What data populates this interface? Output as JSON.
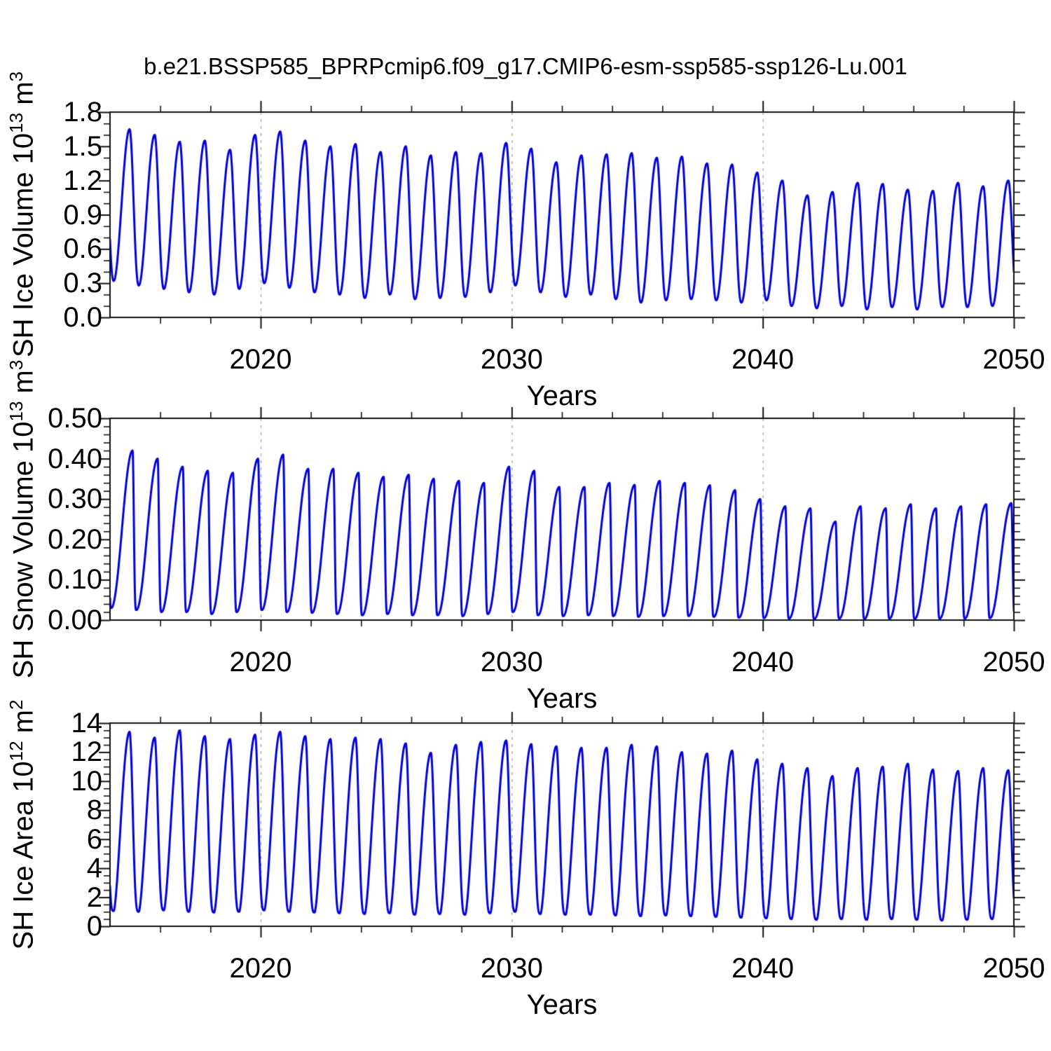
{
  "figure": {
    "title": "b.e21.BSSP585_BPRPcmip6.f09_g17.CMIP6-esm-ssp585-ssp126-Lu.001",
    "background_color": "#ffffff",
    "axis_color": "#111111",
    "gridline_color": "#aaaaaa",
    "line_color": "#0000dd"
  },
  "chart_data": [
    {
      "id": "sh-ice-volume",
      "type": "line",
      "ylabel": {
        "pre": "SH Ice Volume 10",
        "sup1": "13",
        "mid": " m",
        "sup2": "3"
      },
      "xlabel": "Years",
      "x_range": [
        2014,
        2050
      ],
      "y_range": [
        0,
        1.8
      ],
      "x_major_ticks": [
        2020,
        2030,
        2040,
        2050
      ],
      "x_tick_labels": [
        "2020",
        "2030",
        "2040",
        "2050"
      ],
      "x_minor_step": 2,
      "y_major_step": 0.3,
      "y_minor_step": 0.1,
      "y_tick_labels": [
        "0.0",
        "0.3",
        "0.6",
        "0.9",
        "1.2",
        "1.5",
        "1.8"
      ],
      "gridline_years": [
        2020,
        2030,
        2040
      ],
      "grid": "vertical-dashed-at-decades",
      "legend": "none",
      "series": {
        "name": "SH Ice Volume",
        "units": "10^13 m^3",
        "color": "#0000dd",
        "cadence": "monthly seasonal cycle",
        "year_start": 2014,
        "year_end": 2049,
        "trough_phase": 0.15,
        "peak_phase": 0.78,
        "rise_exp": 0.95,
        "fall_exp": 1.25,
        "annual_peaks": [
          1.65,
          1.6,
          1.54,
          1.55,
          1.47,
          1.6,
          1.63,
          1.55,
          1.5,
          1.52,
          1.45,
          1.5,
          1.42,
          1.45,
          1.44,
          1.53,
          1.48,
          1.36,
          1.42,
          1.43,
          1.44,
          1.4,
          1.41,
          1.35,
          1.34,
          1.27,
          1.2,
          1.07,
          1.1,
          1.18,
          1.17,
          1.12,
          1.11,
          1.18,
          1.15,
          1.2
        ],
        "annual_troughs": [
          0.32,
          0.28,
          0.25,
          0.22,
          0.2,
          0.25,
          0.3,
          0.26,
          0.22,
          0.2,
          0.17,
          0.2,
          0.16,
          0.17,
          0.18,
          0.22,
          0.28,
          0.22,
          0.18,
          0.2,
          0.16,
          0.13,
          0.15,
          0.16,
          0.15,
          0.13,
          0.15,
          0.1,
          0.08,
          0.1,
          0.07,
          0.09,
          0.07,
          0.09,
          0.09,
          0.1
        ]
      }
    },
    {
      "id": "sh-snow-volume",
      "type": "line",
      "ylabel": {
        "pre": "SH Snow Volume 10",
        "sup1": "13",
        "mid": " m",
        "sup2": "3"
      },
      "xlabel": "Years",
      "x_range": [
        2014,
        2050
      ],
      "y_range": [
        0,
        0.5
      ],
      "x_major_ticks": [
        2020,
        2030,
        2040,
        2050
      ],
      "x_tick_labels": [
        "2020",
        "2030",
        "2040",
        "2050"
      ],
      "x_minor_step": 2,
      "y_major_step": 0.1,
      "y_minor_step": 0.02,
      "y_tick_labels": [
        "0.00",
        "0.10",
        "0.20",
        "0.30",
        "0.40",
        "0.50"
      ],
      "gridline_years": [
        2020,
        2030,
        2040
      ],
      "grid": "vertical-dashed-at-decades",
      "legend": "none",
      "series": {
        "name": "SH Snow Volume",
        "units": "10^13 m^3",
        "color": "#0000dd",
        "cadence": "monthly seasonal cycle",
        "year_start": 2014,
        "year_end": 2049,
        "trough_phase": 0.05,
        "peak_phase": 0.9,
        "rise_exp": 1.0,
        "fall_exp": 2.0,
        "annual_peaks": [
          0.42,
          0.4,
          0.38,
          0.37,
          0.365,
          0.4,
          0.41,
          0.375,
          0.375,
          0.365,
          0.355,
          0.36,
          0.35,
          0.345,
          0.34,
          0.38,
          0.37,
          0.33,
          0.33,
          0.34,
          0.335,
          0.345,
          0.34,
          0.334,
          0.322,
          0.3,
          0.282,
          0.277,
          0.244,
          0.282,
          0.277,
          0.287,
          0.277,
          0.282,
          0.287,
          0.29
        ],
        "annual_troughs": [
          0.03,
          0.025,
          0.02,
          0.02,
          0.015,
          0.02,
          0.025,
          0.02,
          0.018,
          0.015,
          0.012,
          0.015,
          0.012,
          0.012,
          0.01,
          0.015,
          0.02,
          0.012,
          0.01,
          0.012,
          0.01,
          0.008,
          0.01,
          0.01,
          0.008,
          0.006,
          0.005,
          0.004,
          0.003,
          0.004,
          0.003,
          0.004,
          0.003,
          0.004,
          0.004,
          0.005
        ]
      }
    },
    {
      "id": "sh-ice-area",
      "type": "line",
      "ylabel": {
        "pre": "SH Ice Area 10",
        "sup1": "12",
        "mid": " m",
        "sup2": "2"
      },
      "xlabel": "Years",
      "x_range": [
        2014,
        2050
      ],
      "y_range": [
        0,
        14
      ],
      "x_major_ticks": [
        2020,
        2030,
        2040,
        2050
      ],
      "x_tick_labels": [
        "2020",
        "2030",
        "2040",
        "2050"
      ],
      "x_minor_step": 2,
      "y_major_step": 2,
      "y_minor_step": 0.5,
      "y_tick_labels": [
        "0",
        "2",
        "4",
        "6",
        "8",
        "10",
        "12",
        "14"
      ],
      "gridline_years": [
        2020,
        2030,
        2040
      ],
      "grid": "vertical-dashed-at-decades",
      "legend": "none",
      "series": {
        "name": "SH Ice Area",
        "units": "10^12 m^2",
        "color": "#0000dd",
        "cadence": "monthly seasonal cycle",
        "year_start": 2014,
        "year_end": 2049,
        "trough_phase": 0.15,
        "peak_phase": 0.78,
        "rise_exp": 0.78,
        "fall_exp": 1.9,
        "annual_peaks": [
          13.4,
          13.0,
          13.5,
          13.1,
          12.9,
          13.2,
          13.4,
          13.1,
          12.9,
          13.0,
          12.9,
          12.6,
          11.95,
          12.5,
          12.7,
          12.8,
          12.55,
          12.4,
          12.3,
          12.3,
          12.5,
          12.4,
          12.0,
          11.9,
          12.1,
          11.5,
          11.2,
          10.9,
          10.35,
          10.9,
          11.0,
          11.2,
          10.8,
          10.7,
          10.9,
          10.75
        ],
        "annual_troughs": [
          1.05,
          1.0,
          1.1,
          1.0,
          0.95,
          1.0,
          1.1,
          1.0,
          0.95,
          0.9,
          0.85,
          0.9,
          0.8,
          0.85,
          0.8,
          0.9,
          1.0,
          0.85,
          0.8,
          0.8,
          0.75,
          0.7,
          0.75,
          0.7,
          0.65,
          0.6,
          0.55,
          0.5,
          0.45,
          0.5,
          0.45,
          0.5,
          0.45,
          0.4,
          0.45,
          0.5
        ]
      }
    }
  ]
}
